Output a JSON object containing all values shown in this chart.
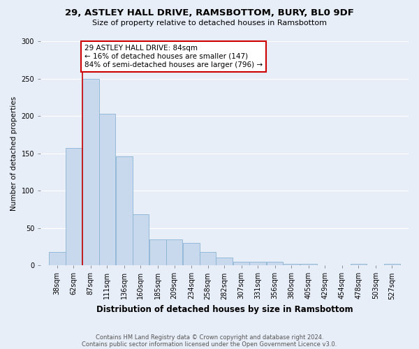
{
  "title1": "29, ASTLEY HALL DRIVE, RAMSBOTTOM, BURY, BL0 9DF",
  "title2": "Size of property relative to detached houses in Ramsbottom",
  "xlabel": "Distribution of detached houses by size in Ramsbottom",
  "ylabel": "Number of detached properties",
  "footnote1": "Contains HM Land Registry data © Crown copyright and database right 2024.",
  "footnote2": "Contains public sector information licensed under the Open Government Licence v3.0.",
  "annotation_line1": "29 ASTLEY HALL DRIVE: 84sqm",
  "annotation_line2": "← 16% of detached houses are smaller (147)",
  "annotation_line3": "84% of semi-detached houses are larger (796) →",
  "bar_left_edges": [
    38,
    62,
    87,
    111,
    136,
    160,
    185,
    209,
    234,
    258,
    282,
    307,
    331,
    356,
    380,
    405,
    429,
    454,
    478,
    503,
    527
  ],
  "bar_heights": [
    18,
    157,
    250,
    203,
    146,
    68,
    35,
    35,
    30,
    18,
    10,
    5,
    5,
    5,
    2,
    2,
    0,
    0,
    2,
    0,
    2
  ],
  "bar_color": "#c9d9ed",
  "bar_edge_color": "#8ab4d4",
  "vline_color": "#cc0000",
  "vline_x": 87,
  "annotation_box_color": "#ffffff",
  "annotation_box_edge": "#cc0000",
  "ylim": [
    0,
    300
  ],
  "yticks": [
    0,
    50,
    100,
    150,
    200,
    250,
    300
  ],
  "background_color": "#e8eef8",
  "title1_fontsize": 9.5,
  "title2_fontsize": 8.0,
  "ylabel_fontsize": 7.5,
  "xlabel_fontsize": 8.5,
  "tick_fontsize": 7.0,
  "annotation_fontsize": 7.5
}
